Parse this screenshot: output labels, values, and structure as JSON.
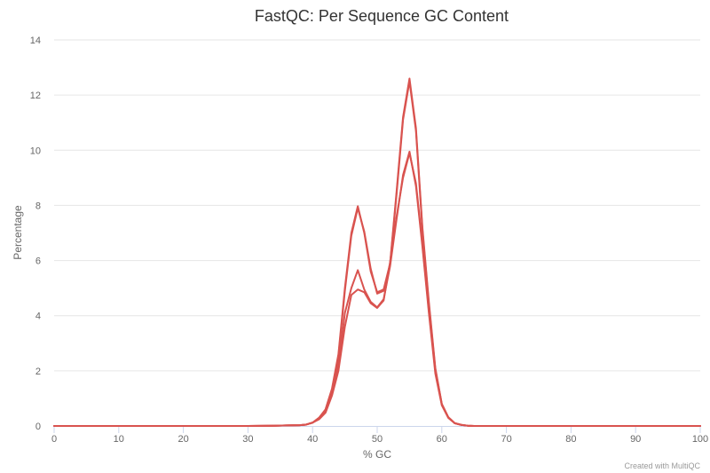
{
  "chart_data": {
    "type": "line",
    "title": "FastQC: Per Sequence GC Content",
    "xlabel": "% GC",
    "ylabel": "Percentage",
    "xlim": [
      0,
      100
    ],
    "ylim": [
      0,
      14
    ],
    "x_ticks": [
      "0",
      "10",
      "20",
      "30",
      "40",
      "50",
      "60",
      "70",
      "80",
      "90",
      "100"
    ],
    "y_ticks": [
      "0",
      "2",
      "4",
      "6",
      "8",
      "10",
      "12",
      "14"
    ],
    "grid": true,
    "legend": "none",
    "credit": "Created with MultiQC",
    "line_color": "#d9534f",
    "series": [
      {
        "x": [
          0,
          30,
          34,
          36,
          38,
          39,
          40,
          41,
          42,
          43,
          44,
          45,
          46,
          47,
          48,
          49,
          50,
          51,
          52,
          53,
          54,
          55,
          56,
          57,
          58,
          59,
          60,
          61,
          62,
          63,
          64,
          65,
          70,
          100
        ],
        "y": [
          0,
          0,
          0.01,
          0.02,
          0.03,
          0.05,
          0.12,
          0.3,
          0.6,
          1.35,
          2.6,
          5.0,
          7.0,
          7.97,
          7.0,
          5.6,
          4.85,
          4.95,
          5.9,
          8.5,
          11.2,
          12.6,
          10.8,
          7.2,
          4.5,
          2.1,
          0.8,
          0.32,
          0.1,
          0.04,
          0.01,
          0,
          0,
          0
        ]
      },
      {
        "x": [
          0,
          30,
          34,
          36,
          38,
          39,
          40,
          41,
          42,
          43,
          44,
          45,
          46,
          47,
          48,
          49,
          50,
          51,
          52,
          53,
          54,
          55,
          56,
          57,
          58,
          59,
          60,
          61,
          62,
          63,
          64,
          65,
          70,
          100
        ],
        "y": [
          0,
          0,
          0.01,
          0.02,
          0.03,
          0.05,
          0.12,
          0.26,
          0.5,
          1.15,
          2.2,
          4.1,
          5.0,
          5.65,
          4.95,
          4.5,
          4.3,
          4.6,
          5.8,
          7.5,
          9.1,
          9.95,
          8.7,
          6.5,
          4.1,
          1.9,
          0.75,
          0.3,
          0.1,
          0.04,
          0.01,
          0,
          0,
          0
        ]
      },
      {
        "x": [
          0,
          30,
          34,
          36,
          38,
          39,
          40,
          41,
          42,
          43,
          44,
          45,
          46,
          47,
          48,
          49,
          50,
          51,
          52,
          53,
          54,
          55,
          56,
          57,
          58,
          59,
          60,
          61,
          62,
          63,
          64,
          65,
          70,
          100
        ],
        "y": [
          0,
          0,
          0.01,
          0.02,
          0.03,
          0.05,
          0.12,
          0.24,
          0.48,
          1.1,
          2.0,
          3.6,
          4.75,
          4.95,
          4.85,
          4.45,
          4.28,
          4.55,
          5.95,
          7.6,
          9.0,
          9.9,
          8.8,
          6.6,
          4.2,
          2.0,
          0.78,
          0.3,
          0.1,
          0.04,
          0.01,
          0,
          0,
          0
        ]
      },
      {
        "x": [
          0,
          30,
          34,
          36,
          38,
          39,
          40,
          41,
          42,
          43,
          44,
          45,
          46,
          47,
          48,
          49,
          50,
          51,
          52,
          53,
          54,
          55,
          56,
          57,
          58,
          59,
          60,
          61,
          62,
          63,
          64,
          65,
          70,
          100
        ],
        "y": [
          0,
          0,
          0.01,
          0.02,
          0.03,
          0.05,
          0.12,
          0.29,
          0.58,
          1.3,
          2.5,
          4.9,
          6.9,
          7.9,
          7.05,
          5.7,
          4.8,
          4.9,
          5.85,
          8.4,
          11.1,
          12.5,
          10.7,
          7.1,
          4.4,
          2.05,
          0.8,
          0.32,
          0.1,
          0.04,
          0.01,
          0,
          0,
          0
        ]
      }
    ]
  }
}
